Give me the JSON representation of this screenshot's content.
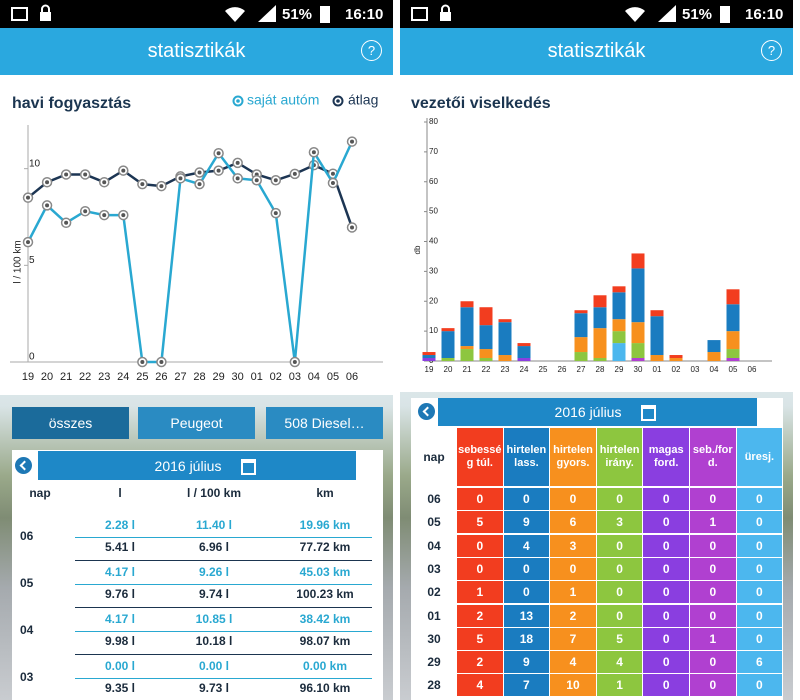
{
  "status_bars": [
    {
      "battery": "51%",
      "time": "16:10"
    },
    {
      "battery": "51%",
      "time": "16:10"
    }
  ],
  "headers": [
    {
      "title": "statisztikák",
      "help": "?"
    },
    {
      "title": "statisztikák",
      "help": "?"
    }
  ],
  "chart_data": [
    {
      "type": "line",
      "title": "havi fogyasztás",
      "ylabel": "l / 100 km",
      "categories": [
        "19",
        "20",
        "21",
        "22",
        "23",
        "24",
        "25",
        "26",
        "27",
        "28",
        "29",
        "30",
        "01",
        "02",
        "03",
        "04",
        "05",
        "06"
      ],
      "series": [
        {
          "name": "saját autóm",
          "color": "#29a8d1",
          "values": [
            6.2,
            8.1,
            7.2,
            7.8,
            7.6,
            7.6,
            0,
            0,
            9.5,
            9.2,
            10.8,
            9.5,
            9.4,
            7.7,
            0,
            10.85,
            9.26,
            11.4
          ]
        },
        {
          "name": "átlag",
          "color": "#1c3553",
          "values": [
            8.5,
            9.3,
            9.7,
            9.7,
            9.3,
            9.9,
            9.2,
            9.1,
            9.6,
            9.8,
            9.9,
            10.3,
            9.7,
            9.4,
            9.73,
            10.18,
            9.74,
            6.96
          ]
        }
      ],
      "ylim": [
        0,
        12
      ],
      "yticks": [
        0,
        5,
        10
      ],
      "legend": "top-right",
      "markers": true
    },
    {
      "type": "bar",
      "stacked": true,
      "title": "vezetői viselkedés",
      "ylabel": "db",
      "categories": [
        "19",
        "20",
        "21",
        "22",
        "23",
        "24",
        "25",
        "26",
        "27",
        "28",
        "29",
        "30",
        "01",
        "02",
        "03",
        "04",
        "05",
        "06"
      ],
      "series": [
        {
          "name": "sebesség túl.",
          "color": "#f23d1f",
          "values": [
            1,
            1,
            2,
            6,
            1,
            1,
            0,
            0,
            1,
            4,
            2,
            5,
            2,
            1,
            0,
            0,
            5,
            0
          ]
        },
        {
          "name": "hirtelen lass.",
          "color": "#1a7cc0",
          "values": [
            1,
            9,
            13,
            8,
            11,
            4,
            0,
            0,
            8,
            7,
            9,
            18,
            13,
            0,
            0,
            4,
            9,
            0
          ]
        },
        {
          "name": "hirtelen gyors.",
          "color": "#f7901e",
          "values": [
            0,
            0,
            1,
            3,
            2,
            0,
            0,
            0,
            5,
            10,
            4,
            7,
            2,
            1,
            0,
            3,
            6,
            0
          ]
        },
        {
          "name": "hirtelen irány.",
          "color": "#8dc63f",
          "values": [
            0,
            1,
            4,
            1,
            0,
            0,
            0,
            0,
            3,
            1,
            4,
            5,
            0,
            0,
            0,
            0,
            3,
            0
          ]
        },
        {
          "name": "magas ford.",
          "color": "#8a3ee0",
          "values": [
            1,
            0,
            0,
            0,
            0,
            1,
            0,
            0,
            0,
            0,
            0,
            0,
            0,
            0,
            0,
            0,
            0,
            0
          ]
        },
        {
          "name": "seb./ford.",
          "color": "#b040d0",
          "values": [
            0,
            0,
            0,
            0,
            0,
            0,
            0,
            0,
            0,
            0,
            0,
            1,
            0,
            0,
            0,
            0,
            1,
            0
          ]
        },
        {
          "name": "üresj.",
          "color": "#4cb7ee",
          "values": [
            0,
            0,
            0,
            0,
            0,
            0,
            0,
            0,
            0,
            0,
            6,
            0,
            0,
            0,
            0,
            0,
            0,
            0
          ]
        }
      ],
      "ylim": [
        0,
        80
      ],
      "yticks": [
        0,
        10,
        20,
        30,
        40,
        50,
        60,
        70,
        80
      ]
    }
  ],
  "filters": [
    "összes",
    "Peugeot",
    "508 Diesel…"
  ],
  "consumption_table": {
    "month": "2016 július",
    "columns": [
      "nap",
      "l",
      "l / 100 km",
      "km"
    ],
    "rows": [
      {
        "day": "06",
        "lines": [
          [
            "2.28 l",
            "11.40 l",
            "19.96 km"
          ],
          [
            "5.41 l",
            "6.96 l",
            "77.72 km"
          ]
        ]
      },
      {
        "day": "05",
        "lines": [
          [
            "4.17 l",
            "9.26 l",
            "45.03 km"
          ],
          [
            "9.76 l",
            "9.74 l",
            "100.23 km"
          ]
        ]
      },
      {
        "day": "04",
        "lines": [
          [
            "4.17 l",
            "10.85 l",
            "38.42 km"
          ],
          [
            "9.98 l",
            "10.18 l",
            "98.07 km"
          ]
        ]
      },
      {
        "day": "03",
        "lines": [
          [
            "0.00 l",
            "0.00 l",
            "0.00 km"
          ],
          [
            "9.35 l",
            "9.73 l",
            "96.10 km"
          ]
        ]
      }
    ]
  },
  "behavior_table": {
    "month": "2016 július",
    "day_header": "nap"
  }
}
